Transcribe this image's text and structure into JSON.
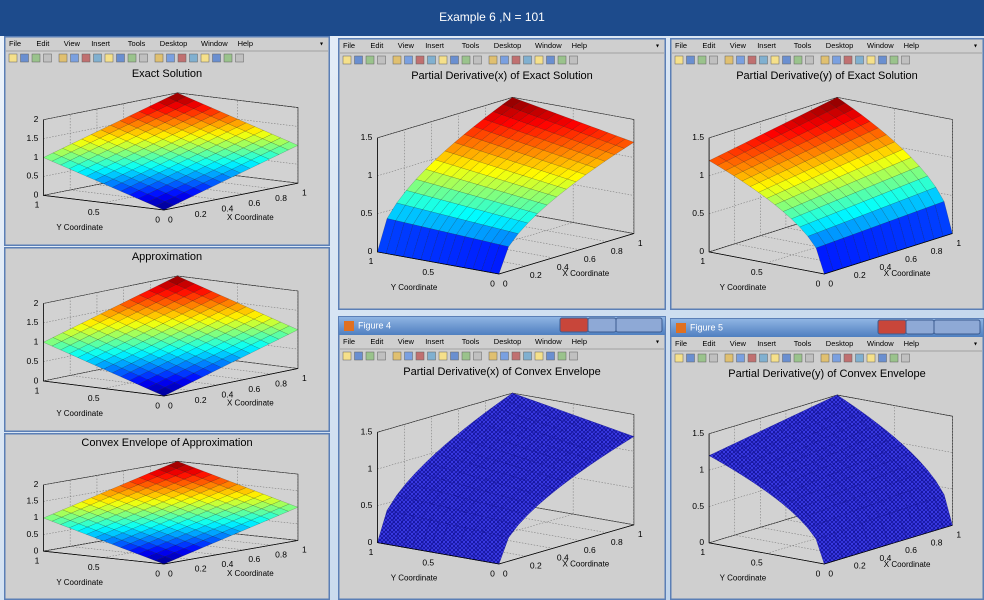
{
  "banner": {
    "title": "Example 6 ,N = 101"
  },
  "menu": [
    "File",
    "Edit",
    "View",
    "Insert",
    "Tools",
    "Desktop",
    "Window",
    "Help"
  ],
  "windows": [
    {
      "plot_title": "Exact Solution",
      "zticks": [
        0,
        0.5,
        1,
        1.5,
        2
      ],
      "yticks": [
        0,
        0.5,
        1
      ],
      "xticks": [
        0,
        0.2,
        0.4,
        0.6,
        0.8,
        1
      ],
      "ylabel": "Y Coordinate",
      "xlabel": "X Coordinate"
    },
    {
      "plot_title": "Approximation",
      "zticks": [
        0,
        0.5,
        1,
        1.5,
        2
      ],
      "yticks": [
        0,
        0.5,
        1
      ],
      "xticks": [
        0,
        0.2,
        0.4,
        0.6,
        0.8,
        1
      ],
      "ylabel": "Y Coordinate",
      "xlabel": "X Coordinate"
    },
    {
      "plot_title": "Convex Envelope of Approximation",
      "zticks": [
        0,
        0.5,
        1,
        1.5,
        2
      ],
      "yticks": [
        0,
        0.5,
        1
      ],
      "xticks": [
        0,
        0.2,
        0.4,
        0.6,
        0.8,
        1
      ],
      "ylabel": "Y Coordinate",
      "xlabel": "X Coordinate"
    },
    {
      "plot_title": "Partial Derivative(x) of Exact Solution",
      "zticks": [
        0,
        0.5,
        1,
        1.5
      ],
      "yticks": [
        0,
        0.5,
        1
      ],
      "xticks": [
        0,
        0.2,
        0.4,
        0.6,
        0.8,
        1
      ],
      "ylabel": "Y Coordinate",
      "xlabel": "X Coordinate"
    },
    {
      "plot_title": "Partial Derivative(y) of Exact Solution",
      "zticks": [
        0,
        0.5,
        1,
        1.5
      ],
      "yticks": [
        0,
        0.5,
        1
      ],
      "xticks": [
        0,
        0.2,
        0.4,
        0.6,
        0.8,
        1
      ],
      "ylabel": "Y Coordinate",
      "xlabel": "X Coordinate"
    },
    {
      "caption": "Figure 4",
      "plot_title": "Partial Derivative(x) of Convex Envelope",
      "zticks": [
        0,
        0.5,
        1,
        1.5
      ],
      "yticks": [
        0,
        0.5,
        1
      ],
      "xticks": [
        0,
        0.2,
        0.4,
        0.6,
        0.8,
        1
      ],
      "ylabel": "Y Coordinate",
      "xlabel": "X Coordinate"
    },
    {
      "caption": "Figure 5",
      "plot_title": "Partial Derivative(y) of Convex Envelope",
      "zticks": [
        0,
        0.5,
        1,
        1.5
      ],
      "yticks": [
        0,
        0.5,
        1
      ],
      "xticks": [
        0,
        0.2,
        0.4,
        0.6,
        0.8,
        1
      ],
      "ylabel": "Y Coordinate",
      "xlabel": "X Coordinate"
    }
  ]
}
